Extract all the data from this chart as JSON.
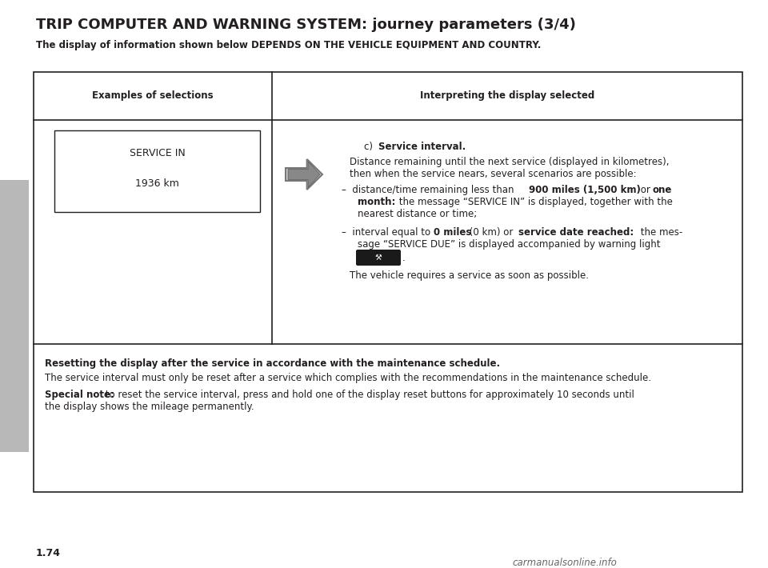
{
  "title": "TRIP COMPUTER AND WARNING SYSTEM: journey parameters (3/4)",
  "subtitle": "The display of information shown below DEPENDS ON THE VEHICLE EQUIPMENT AND COUNTRY.",
  "col1_header": "Examples of selections",
  "col2_header": "Interpreting the display selected",
  "display_line1": "SERVICE IN",
  "display_line2": "1936 km",
  "page_num": "1.74",
  "watermark": "carmanualsonline.info",
  "bg_color": "#ffffff",
  "border_color": "#231f20",
  "sidebar_color": "#b8b8b8"
}
